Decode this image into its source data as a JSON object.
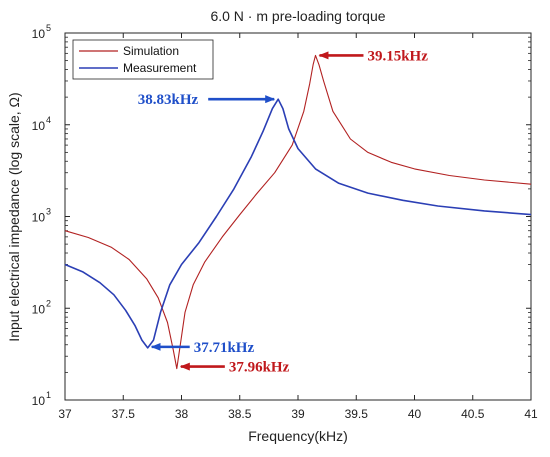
{
  "chart_data": {
    "type": "line",
    "title": "6.0 N · m pre-loading torque",
    "xlabel": "Frequency(kHz)",
    "ylabel": "Input electrical impedance (log scale, Ω)",
    "xlim": [
      37,
      41
    ],
    "ylim": [
      10,
      100000
    ],
    "yscale": "log",
    "grid": false,
    "legend_position": "top-left",
    "x_ticks": [
      "37",
      "37.5",
      "38",
      "38.5",
      "39",
      "39.5",
      "40",
      "40.5",
      "41"
    ],
    "y_ticks": [
      {
        "value": 10,
        "base": "10",
        "exp": "1"
      },
      {
        "value": 100,
        "base": "10",
        "exp": "2"
      },
      {
        "value": 1000,
        "base": "10",
        "exp": "3"
      },
      {
        "value": 10000,
        "base": "10",
        "exp": "4"
      },
      {
        "value": 100000,
        "base": "10",
        "exp": "5"
      }
    ],
    "series": [
      {
        "name": "Simulation",
        "color": "#b22222",
        "points": [
          [
            37.0,
            700
          ],
          [
            37.2,
            590
          ],
          [
            37.4,
            460
          ],
          [
            37.55,
            340
          ],
          [
            37.7,
            210
          ],
          [
            37.8,
            130
          ],
          [
            37.88,
            70
          ],
          [
            37.93,
            35
          ],
          [
            37.96,
            22
          ],
          [
            37.99,
            40
          ],
          [
            38.03,
            90
          ],
          [
            38.1,
            180
          ],
          [
            38.2,
            320
          ],
          [
            38.35,
            600
          ],
          [
            38.5,
            1050
          ],
          [
            38.65,
            1800
          ],
          [
            38.8,
            3000
          ],
          [
            38.95,
            6000
          ],
          [
            39.05,
            14000
          ],
          [
            39.1,
            28000
          ],
          [
            39.13,
            45000
          ],
          [
            39.15,
            57000
          ],
          [
            39.18,
            45000
          ],
          [
            39.22,
            30000
          ],
          [
            39.3,
            14000
          ],
          [
            39.45,
            7000
          ],
          [
            39.6,
            5000
          ],
          [
            39.8,
            3900
          ],
          [
            40.0,
            3300
          ],
          [
            40.3,
            2800
          ],
          [
            40.6,
            2500
          ],
          [
            41.0,
            2250
          ]
        ]
      },
      {
        "name": "Measurement",
        "color": "#2b3fb5",
        "points": [
          [
            37.0,
            300
          ],
          [
            37.15,
            250
          ],
          [
            37.3,
            190
          ],
          [
            37.42,
            140
          ],
          [
            37.52,
            95
          ],
          [
            37.6,
            65
          ],
          [
            37.66,
            45
          ],
          [
            37.71,
            37
          ],
          [
            37.76,
            45
          ],
          [
            37.82,
            90
          ],
          [
            37.9,
            180
          ],
          [
            38.0,
            300
          ],
          [
            38.15,
            520
          ],
          [
            38.3,
            1000
          ],
          [
            38.45,
            2000
          ],
          [
            38.6,
            4500
          ],
          [
            38.7,
            8500
          ],
          [
            38.78,
            15000
          ],
          [
            38.83,
            19000
          ],
          [
            38.87,
            15000
          ],
          [
            38.92,
            9000
          ],
          [
            39.0,
            5500
          ],
          [
            39.15,
            3300
          ],
          [
            39.35,
            2300
          ],
          [
            39.6,
            1800
          ],
          [
            39.9,
            1500
          ],
          [
            40.2,
            1300
          ],
          [
            40.6,
            1150
          ],
          [
            41.0,
            1050
          ]
        ]
      }
    ],
    "annotations": [
      {
        "text": "39.15kHz",
        "color": "#c0181c",
        "x": 39.15,
        "y": 57000,
        "side": "right"
      },
      {
        "text": "38.83kHz",
        "color": "#1f4fc9",
        "x": 38.83,
        "y": 19000,
        "side": "left"
      },
      {
        "text": "37.71kHz",
        "color": "#1f4fc9",
        "x": 37.71,
        "y": 37,
        "side": "right"
      },
      {
        "text": "37.96kHz",
        "color": "#c0181c",
        "x": 37.96,
        "y": 22,
        "side": "right"
      }
    ]
  }
}
